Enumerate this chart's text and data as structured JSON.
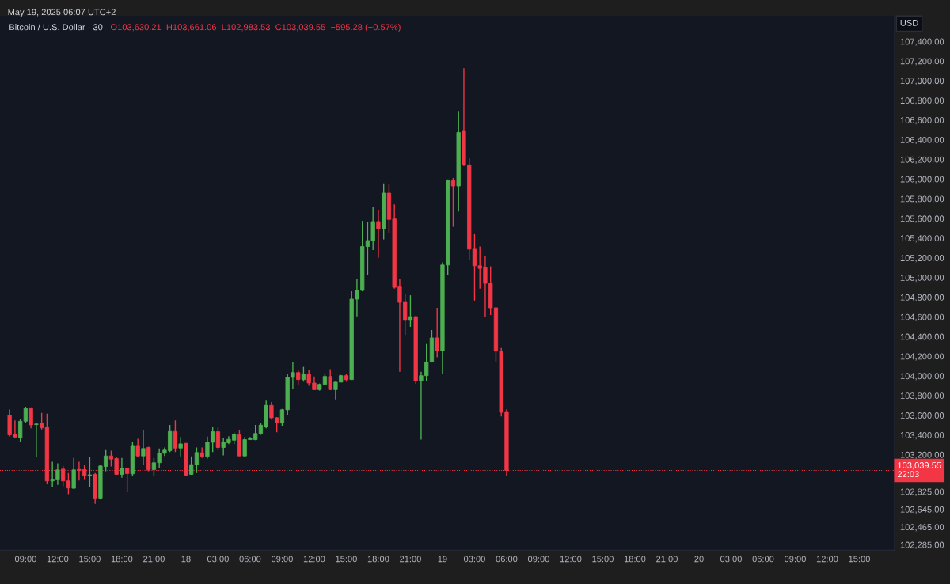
{
  "chart_data": {
    "type": "candlestick",
    "title": "Bitcoin / U.S. Dollar · 30",
    "annotations": [
      "May 19, 2025 06:07 UTC+2",
      "O103,630.21  H103,661.06  L102,983.53  C103,039.55  −595.28 (−0.57%)",
      "USD"
    ],
    "x": [
      "2025-05-17T07:30",
      "2025-05-17T08:00",
      "2025-05-17T08:30",
      "2025-05-17T09:00",
      "2025-05-17T09:30",
      "2025-05-17T10:00",
      "2025-05-17T10:30",
      "2025-05-17T11:00",
      "2025-05-17T11:30",
      "2025-05-17T12:00",
      "2025-05-17T12:30",
      "2025-05-17T13:00",
      "2025-05-17T13:30",
      "2025-05-17T14:00",
      "2025-05-17T14:30",
      "2025-05-17T15:00",
      "2025-05-17T15:30",
      "2025-05-17T16:00",
      "2025-05-17T16:30",
      "2025-05-17T17:00",
      "2025-05-17T17:30",
      "2025-05-17T18:00",
      "2025-05-17T18:30",
      "2025-05-17T19:00",
      "2025-05-17T19:30",
      "2025-05-17T20:00",
      "2025-05-17T20:30",
      "2025-05-17T21:00",
      "2025-05-17T21:30",
      "2025-05-17T22:00",
      "2025-05-17T22:30",
      "2025-05-17T23:00",
      "2025-05-17T23:30",
      "2025-05-18T00:00",
      "2025-05-18T00:30",
      "2025-05-18T01:00",
      "2025-05-18T01:30",
      "2025-05-18T02:00",
      "2025-05-18T02:30",
      "2025-05-18T03:00",
      "2025-05-18T03:30",
      "2025-05-18T04:00",
      "2025-05-18T04:30",
      "2025-05-18T05:00",
      "2025-05-18T05:30",
      "2025-05-18T06:00",
      "2025-05-18T06:30",
      "2025-05-18T07:00",
      "2025-05-18T07:30",
      "2025-05-18T08:00",
      "2025-05-18T08:30",
      "2025-05-18T09:00",
      "2025-05-18T09:30",
      "2025-05-18T10:00",
      "2025-05-18T10:30",
      "2025-05-18T11:00",
      "2025-05-18T11:30",
      "2025-05-18T12:00",
      "2025-05-18T12:30",
      "2025-05-18T13:00",
      "2025-05-18T13:30",
      "2025-05-18T14:00",
      "2025-05-18T14:30",
      "2025-05-18T15:00",
      "2025-05-18T15:30",
      "2025-05-18T16:00",
      "2025-05-18T16:30",
      "2025-05-18T17:00",
      "2025-05-18T17:30",
      "2025-05-18T18:00",
      "2025-05-18T18:30",
      "2025-05-18T19:00",
      "2025-05-18T19:30",
      "2025-05-18T20:00",
      "2025-05-18T20:30",
      "2025-05-18T21:00",
      "2025-05-18T21:30",
      "2025-05-18T22:00",
      "2025-05-18T22:30",
      "2025-05-18T23:00",
      "2025-05-18T23:30",
      "2025-05-19T00:00",
      "2025-05-19T00:30",
      "2025-05-19T01:00",
      "2025-05-19T01:30",
      "2025-05-19T02:00",
      "2025-05-19T02:30",
      "2025-05-19T03:00",
      "2025-05-19T03:30",
      "2025-05-19T04:00",
      "2025-05-19T04:30",
      "2025-05-19T05:00",
      "2025-05-19T05:30",
      "2025-05-19T06:00"
    ],
    "ohlc": [
      [
        103602,
        103658,
        103385,
        103401
      ],
      [
        103407,
        103548,
        103374,
        103380
      ],
      [
        103374,
        103562,
        103334,
        103540
      ],
      [
        103540,
        103688,
        103521,
        103669
      ],
      [
        103669,
        103682,
        103468,
        103503
      ],
      [
        103505,
        103520,
        103174,
        103512
      ],
      [
        103521,
        103624,
        103455,
        103473
      ],
      [
        103481,
        103616,
        102906,
        102933
      ],
      [
        102933,
        103128,
        102866,
        102951
      ],
      [
        102951,
        103112,
        102893,
        103045
      ],
      [
        103053,
        103085,
        102879,
        102933
      ],
      [
        102933,
        103013,
        102799,
        102861
      ],
      [
        102858,
        103166,
        102853,
        103045
      ],
      [
        103050,
        103128,
        102938,
        103040
      ],
      [
        103048,
        103093,
        102951,
        102986
      ],
      [
        102985,
        103174,
        102871,
        102995
      ],
      [
        103000,
        103013,
        102700,
        102759
      ],
      [
        102759,
        103101,
        102745,
        103085
      ],
      [
        103080,
        103246,
        103032,
        103187
      ],
      [
        103187,
        103241,
        103080,
        103155
      ],
      [
        103160,
        103174,
        102995,
        103000
      ],
      [
        103000,
        103166,
        102965,
        103061
      ],
      [
        103061,
        103066,
        102818,
        103008
      ],
      [
        103005,
        103326,
        102986,
        103294
      ],
      [
        103294,
        103361,
        103174,
        103187
      ],
      [
        103187,
        103449,
        103093,
        103262
      ],
      [
        103273,
        103281,
        103032,
        103048
      ],
      [
        103048,
        103166,
        102978,
        103118
      ],
      [
        103118,
        103262,
        103066,
        103214
      ],
      [
        103214,
        103273,
        103187,
        103246
      ],
      [
        103241,
        103503,
        103227,
        103436
      ],
      [
        103436,
        103548,
        103227,
        103267
      ],
      [
        103267,
        103380,
        103182,
        103310
      ],
      [
        103315,
        103320,
        102984,
        102992
      ],
      [
        103000,
        103182,
        102995,
        103099
      ],
      [
        103099,
        103273,
        103013,
        103222
      ],
      [
        103219,
        103273,
        103166,
        103182
      ],
      [
        103182,
        103383,
        103160,
        103326
      ],
      [
        103326,
        103487,
        103227,
        103433
      ],
      [
        103433,
        103476,
        103246,
        103273
      ],
      [
        103273,
        103374,
        103192,
        103326
      ],
      [
        103321,
        103388,
        103307,
        103356
      ],
      [
        103347,
        103423,
        103307,
        103407
      ],
      [
        103401,
        103449,
        103187,
        103187
      ],
      [
        103187,
        103380,
        103182,
        103353
      ],
      [
        103353,
        103380,
        103353,
        103369
      ],
      [
        103353,
        103503,
        103348,
        103415
      ],
      [
        103415,
        103522,
        103401,
        103500
      ],
      [
        103487,
        103749,
        103468,
        103701
      ],
      [
        103701,
        103736,
        103556,
        103575
      ],
      [
        103575,
        103583,
        103428,
        103527
      ],
      [
        103521,
        103664,
        103495,
        103656
      ],
      [
        103656,
        104017,
        103602,
        103985
      ],
      [
        103985,
        104137,
        103869,
        104035
      ],
      [
        104035,
        104057,
        103910,
        103963
      ],
      [
        103963,
        104092,
        103942,
        104017
      ],
      [
        104017,
        104057,
        103901,
        103929
      ],
      [
        103929,
        103995,
        103857,
        103861
      ],
      [
        103861,
        103923,
        103851,
        103915
      ],
      [
        103915,
        104025,
        103910,
        103995
      ],
      [
        103995,
        104070,
        103857,
        103861
      ],
      [
        103861,
        103942,
        103762,
        103937
      ],
      [
        103937,
        104011,
        103937,
        104003
      ],
      [
        104003,
        104017,
        103942,
        103963
      ],
      [
        103963,
        104861,
        103963,
        104781
      ],
      [
        104781,
        104981,
        104606,
        104870
      ],
      [
        104870,
        105575,
        104860,
        105315
      ],
      [
        105315,
        105569,
        105029,
        105376
      ],
      [
        105376,
        105716,
        105280,
        105569
      ],
      [
        105569,
        105690,
        105200,
        105497
      ],
      [
        105497,
        105957,
        105387,
        105858
      ],
      [
        105858,
        105944,
        105457,
        105591
      ],
      [
        105596,
        105743,
        104887,
        104900
      ],
      [
        104905,
        104985,
        104043,
        104748
      ],
      [
        104748,
        104833,
        104418,
        104565
      ],
      [
        104565,
        104820,
        104499,
        104603
      ],
      [
        104603,
        104610,
        103923,
        103950
      ],
      [
        103950,
        104043,
        103353,
        104003
      ],
      [
        104003,
        104325,
        103950,
        104142
      ],
      [
        104142,
        104467,
        104137,
        104387
      ],
      [
        104387,
        104692,
        104190,
        104258
      ],
      [
        104258,
        105154,
        104017,
        105128
      ],
      [
        105128,
        105997,
        105021,
        105984
      ],
      [
        105984,
        106011,
        105516,
        105930
      ],
      [
        105930,
        106693,
        105671,
        106474
      ],
      [
        106493,
        107127,
        106132,
        106145
      ],
      [
        106145,
        106212,
        105181,
        105288
      ],
      [
        105288,
        105441,
        104766,
        105120
      ],
      [
        105120,
        105315,
        104887,
        105093
      ],
      [
        105101,
        105221,
        104600,
        104941
      ],
      [
        104941,
        105114,
        104619,
        104692
      ],
      [
        104692,
        104700,
        104137,
        104252
      ],
      [
        104252,
        104284,
        103589,
        103630.21
      ],
      [
        103630.21,
        103661.06,
        102983.53,
        103039.55
      ]
    ],
    "colors": [
      "#f23645",
      "#f23645",
      "#4caf50",
      "#4caf50",
      "#f23645",
      "#4caf50",
      "#f23645",
      "#f23645",
      "#4caf50",
      "#4caf50",
      "#f23645",
      "#f23645",
      "#4caf50",
      "#f23645",
      "#f23645",
      "#4caf50",
      "#f23645",
      "#4caf50",
      "#4caf50",
      "#f23645",
      "#f23645",
      "#4caf50",
      "#f23645",
      "#4caf50",
      "#f23645",
      "#4caf50",
      "#f23645",
      "#4caf50",
      "#4caf50",
      "#4caf50",
      "#4caf50",
      "#f23645",
      "#4caf50",
      "#f23645",
      "#4caf50",
      "#4caf50",
      "#f23645",
      "#4caf50",
      "#4caf50",
      "#f23645",
      "#4caf50",
      "#4caf50",
      "#4caf50",
      "#f23645",
      "#4caf50",
      "#4caf50",
      "#4caf50",
      "#4caf50",
      "#4caf50",
      "#f23645",
      "#f23645",
      "#4caf50",
      "#4caf50",
      "#4caf50",
      "#f23645",
      "#4caf50",
      "#f23645",
      "#f23645",
      "#4caf50",
      "#4caf50",
      "#f23645",
      "#4caf50",
      "#4caf50",
      "#f23645",
      "#4caf50",
      "#4caf50",
      "#4caf50",
      "#4caf50",
      "#4caf50",
      "#f23645",
      "#4caf50",
      "#f23645",
      "#f23645",
      "#f23645",
      "#f23645",
      "#4caf50",
      "#f23645",
      "#4caf50",
      "#4caf50",
      "#4caf50",
      "#f23645",
      "#4caf50",
      "#4caf50",
      "#f23645",
      "#4caf50",
      "#f23645",
      "#f23645",
      "#f23645",
      "#f23645",
      "#f23645",
      "#f23645",
      "#f23645",
      "#f23645",
      "#f23645"
    ],
    "xlim": [
      "2025-05-17T06:36",
      "2025-05-20T18:18"
    ],
    "xticks": [
      {
        "value": "2025-05-17T09:00",
        "label": "09:00"
      },
      {
        "value": "2025-05-17T12:00",
        "label": "12:00"
      },
      {
        "value": "2025-05-17T15:00",
        "label": "15:00"
      },
      {
        "value": "2025-05-17T18:00",
        "label": "18:00"
      },
      {
        "value": "2025-05-17T21:00",
        "label": "21:00"
      },
      {
        "value": "2025-05-18T00:00",
        "label": "18"
      },
      {
        "value": "2025-05-18T03:00",
        "label": "03:00"
      },
      {
        "value": "2025-05-18T06:00",
        "label": "06:00"
      },
      {
        "value": "2025-05-18T09:00",
        "label": "09:00"
      },
      {
        "value": "2025-05-18T12:00",
        "label": "12:00"
      },
      {
        "value": "2025-05-18T15:00",
        "label": "15:00"
      },
      {
        "value": "2025-05-18T18:00",
        "label": "18:00"
      },
      {
        "value": "2025-05-18T21:00",
        "label": "21:00"
      },
      {
        "value": "2025-05-19T00:00",
        "label": "19"
      },
      {
        "value": "2025-05-19T03:00",
        "label": "03:00"
      },
      {
        "value": "2025-05-19T06:00",
        "label": "06:00"
      },
      {
        "value": "2025-05-19T09:00",
        "label": "09:00"
      },
      {
        "value": "2025-05-19T12:00",
        "label": "12:00"
      },
      {
        "value": "2025-05-19T15:00",
        "label": "15:00"
      },
      {
        "value": "2025-05-19T18:00",
        "label": "18:00"
      },
      {
        "value": "2025-05-19T21:00",
        "label": "21:00"
      },
      {
        "value": "2025-05-20T00:00",
        "label": "20"
      },
      {
        "value": "2025-05-20T03:00",
        "label": "03:00"
      },
      {
        "value": "2025-05-20T06:00",
        "label": "06:00"
      },
      {
        "value": "2025-05-20T09:00",
        "label": "09:00"
      },
      {
        "value": "2025-05-20T12:00",
        "label": "12:00"
      },
      {
        "value": "2025-05-20T15:00",
        "label": "15:00"
      }
    ],
    "ylim": [
      102230,
      107660
    ],
    "yticks": [
      {
        "value": 102285,
        "label": "102,285.00"
      },
      {
        "value": 102465,
        "label": "102,465.00"
      },
      {
        "value": 102645,
        "label": "102,645.00"
      },
      {
        "value": 102825,
        "label": "102,825.00"
      },
      {
        "value": 103200,
        "label": "103,200.00"
      },
      {
        "value": 103400,
        "label": "103,400.00"
      },
      {
        "value": 103600,
        "label": "103,600.00"
      },
      {
        "value": 103800,
        "label": "103,800.00"
      },
      {
        "value": 104000,
        "label": "104,000.00"
      },
      {
        "value": 104200,
        "label": "104,200.00"
      },
      {
        "value": 104400,
        "label": "104,400.00"
      },
      {
        "value": 104600,
        "label": "104,600.00"
      },
      {
        "value": 104800,
        "label": "104,800.00"
      },
      {
        "value": 105000,
        "label": "105,000.00"
      },
      {
        "value": 105200,
        "label": "105,200.00"
      },
      {
        "value": 105400,
        "label": "105,400.00"
      },
      {
        "value": 105600,
        "label": "105,600.00"
      },
      {
        "value": 105800,
        "label": "105,800.00"
      },
      {
        "value": 106000,
        "label": "106,000.00"
      },
      {
        "value": 106200,
        "label": "106,200.00"
      },
      {
        "value": 106400,
        "label": "106,400.00"
      },
      {
        "value": 106600,
        "label": "106,600.00"
      },
      {
        "value": 106800,
        "label": "106,800.00"
      },
      {
        "value": 107000,
        "label": "107,000.00"
      },
      {
        "value": 107200,
        "label": "107,200.00"
      },
      {
        "value": 107400,
        "label": "107,400.00"
      }
    ],
    "ref_lines": [
      {
        "axis": "y",
        "value": 103039.55,
        "label": "103,039.55\n22:03",
        "color": "#f23645",
        "line_style": "dotted"
      }
    ],
    "grid": false
  }
}
